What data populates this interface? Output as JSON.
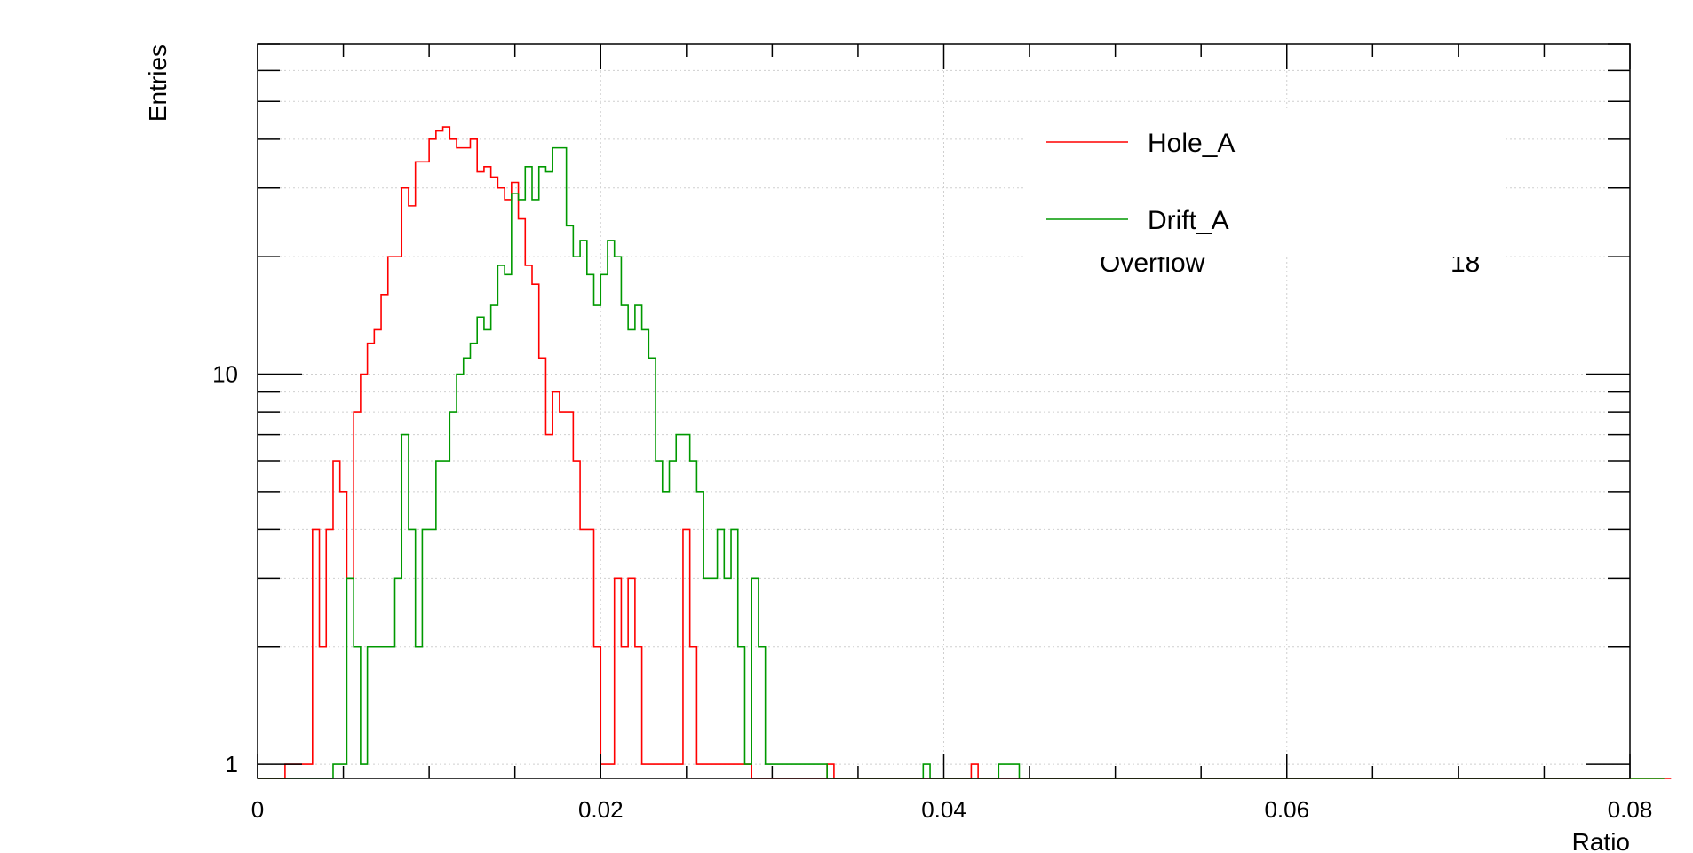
{
  "chart_data": {
    "type": "histogram",
    "xlabel": "Ratio",
    "ylabel": "Entries",
    "xlim": [
      0,
      0.08
    ],
    "ylim": [
      0.92,
      70
    ],
    "log_y": true,
    "grid": true,
    "bin_width": 0.0004,
    "x_ticks": [
      "0",
      "0.02",
      "0.04",
      "0.06",
      "0.08"
    ],
    "y_ticks": [
      "1",
      "10"
    ],
    "legend": {
      "placement": "top-right",
      "overflow_label": "Overflow",
      "overflow_value": "18"
    },
    "series": [
      {
        "name": "Hole_A",
        "color": "#ff0000",
        "values": [
          0,
          0,
          0,
          0,
          1,
          1,
          1,
          1,
          4,
          2,
          4,
          6,
          5,
          3,
          8,
          10,
          12,
          13,
          16,
          20,
          20,
          30,
          27,
          35,
          35,
          40,
          42,
          43,
          40,
          38,
          38,
          40,
          33,
          34,
          32,
          30,
          28,
          31,
          25,
          19,
          17,
          11,
          7,
          9,
          8,
          8,
          6,
          4,
          4,
          2,
          1,
          1,
          3,
          2,
          3,
          2,
          1,
          1,
          1,
          1,
          1,
          1,
          4,
          2,
          1,
          1,
          1,
          1,
          1,
          1,
          1,
          1,
          0,
          0,
          0,
          0,
          0,
          0,
          0,
          0,
          0,
          0,
          0,
          1,
          0,
          0,
          0,
          0,
          0,
          0,
          0,
          0,
          0,
          0,
          0,
          0,
          0,
          0,
          0,
          0,
          0,
          0,
          0,
          0,
          1,
          0,
          0,
          0,
          0,
          0,
          0,
          0,
          0,
          0,
          0,
          0,
          0,
          0,
          0,
          0,
          0,
          0,
          0,
          0,
          0,
          0,
          0,
          0,
          0,
          0,
          0,
          0,
          0,
          0,
          0,
          0,
          0,
          0,
          0,
          0,
          0,
          0,
          0,
          0,
          0,
          0,
          0,
          0,
          0,
          0,
          0,
          0,
          0,
          0,
          0,
          0,
          0,
          0,
          0,
          0,
          0,
          0,
          0,
          0,
          0,
          0,
          0,
          0,
          0,
          0,
          0,
          0,
          0,
          0,
          0,
          0,
          0,
          0,
          0,
          0,
          0,
          0,
          0,
          0,
          0,
          0,
          0,
          0,
          0,
          0,
          0,
          0,
          0,
          0,
          0,
          0,
          0,
          0,
          0,
          0,
          0,
          0,
          0,
          0,
          0,
          0,
          0
        ]
      },
      {
        "name": "Drift_A",
        "color": "#009900",
        "values": [
          0,
          0,
          0,
          0,
          0,
          0,
          0,
          0,
          0,
          0,
          0,
          1,
          1,
          3,
          2,
          1,
          2,
          2,
          2,
          2,
          3,
          7,
          4,
          2,
          4,
          4,
          6,
          6,
          8,
          10,
          11,
          12,
          14,
          13,
          15,
          19,
          18,
          29,
          28,
          34,
          28,
          34,
          33,
          38,
          38,
          24,
          20,
          22,
          18,
          15,
          18,
          22,
          20,
          15,
          13,
          15,
          13,
          11,
          6,
          5,
          6,
          7,
          7,
          6,
          5,
          3,
          3,
          4,
          3,
          4,
          2,
          1,
          3,
          2,
          1,
          1,
          1,
          1,
          1,
          1,
          1,
          1,
          1,
          0,
          0,
          0,
          0,
          0,
          0,
          0,
          0,
          0,
          0,
          0,
          0,
          0,
          0,
          1,
          0,
          0,
          0,
          0,
          0,
          0,
          0,
          0,
          0,
          0,
          1,
          1,
          1,
          0,
          0,
          0,
          0,
          0,
          0,
          0,
          0,
          0,
          0,
          0,
          0,
          0,
          0,
          0,
          0,
          0,
          0,
          0,
          0,
          0,
          0,
          0,
          0,
          0,
          0,
          0,
          0,
          0,
          0,
          0,
          0,
          0,
          0,
          0,
          0,
          0,
          0,
          0,
          0,
          0,
          0,
          0,
          0,
          0,
          0,
          0,
          0,
          0,
          0,
          0,
          0,
          0,
          0,
          0,
          0,
          0,
          0,
          0,
          0,
          0,
          0,
          0,
          0,
          0,
          0,
          0,
          0,
          0,
          0,
          0,
          0,
          0,
          0,
          0,
          0,
          0,
          0,
          0,
          0,
          0,
          0,
          0,
          0,
          0,
          0,
          0,
          0,
          0,
          0,
          0,
          0,
          0,
          0,
          0
        ]
      }
    ]
  }
}
